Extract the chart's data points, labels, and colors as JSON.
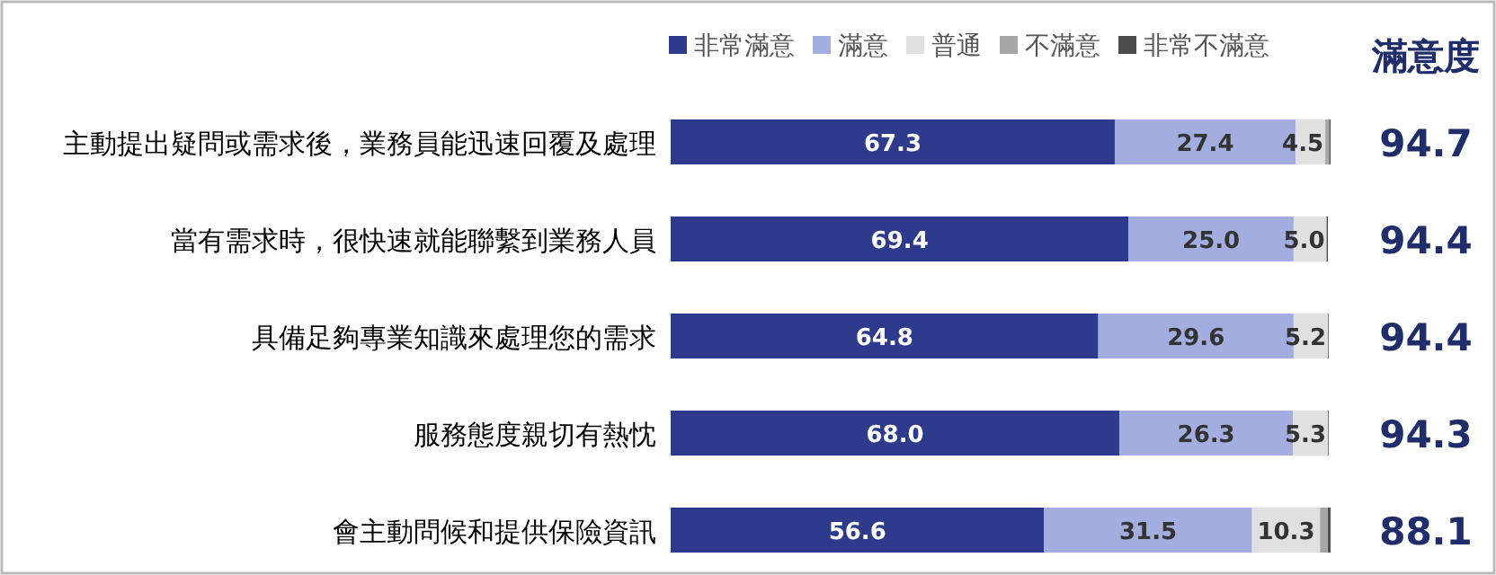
{
  "chart_data": {
    "type": "bar",
    "orientation": "horizontal",
    "stacked": true,
    "legend": "top",
    "categories": [
      "主動提出疑問或需求後，業務員能迅速回覆及處理",
      "當有需求時，很快速就能聯繫到業務人員",
      "具備足夠專業知識來處理您的需求",
      "服務態度親切有熱忱",
      "會主動問候和提供保險資訊"
    ],
    "series": [
      {
        "name": "非常滿意",
        "color": "#2e3a8c",
        "values": [
          67.3,
          69.4,
          64.8,
          68.0,
          56.6
        ],
        "value_labels": [
          "67.3",
          "69.4",
          "64.8",
          "68.0",
          "56.6"
        ]
      },
      {
        "name": "滿意",
        "color": "#a4ade0",
        "values": [
          27.4,
          25.0,
          29.6,
          26.3,
          31.5
        ],
        "value_labels": [
          "27.4",
          "25.0",
          "29.6",
          "26.3",
          "31.5"
        ]
      },
      {
        "name": "普通",
        "color": "#e0e0e0",
        "values": [
          4.5,
          5.0,
          5.2,
          5.3,
          10.3
        ],
        "value_labels": [
          "4.5",
          "5.0",
          "5.2",
          "5.3",
          "10.3"
        ]
      },
      {
        "name": "不滿意",
        "color": "#a6a6a6",
        "values": [
          0.6,
          null,
          null,
          null,
          1.2
        ]
      },
      {
        "name": "非常不滿意",
        "color": "#4d4d4d",
        "values": [
          0.2,
          0.2,
          0.1,
          0.1,
          0.4
        ]
      }
    ],
    "annotations": [
      "滿意度",
      "94.7",
      "94.4",
      "94.4",
      "94.3",
      "88.1"
    ]
  }
}
